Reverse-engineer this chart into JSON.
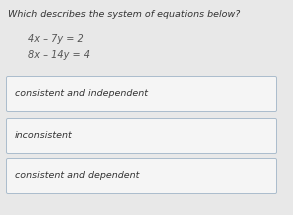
{
  "title": "Which describes the system of equations below?",
  "equation1": "4x – 7y = 2",
  "equation2": "8x – 14y = 4",
  "options": [
    "consistent and independent",
    "inconsistent",
    "consistent and dependent"
  ],
  "bg_color": "#e8e8e8",
  "box_facecolor": "#f5f5f5",
  "box_edgecolor": "#aabccc",
  "title_fontsize": 6.8,
  "eq_fontsize": 7.0,
  "option_fontsize": 6.8,
  "text_color": "#333333",
  "eq_color": "#555555"
}
